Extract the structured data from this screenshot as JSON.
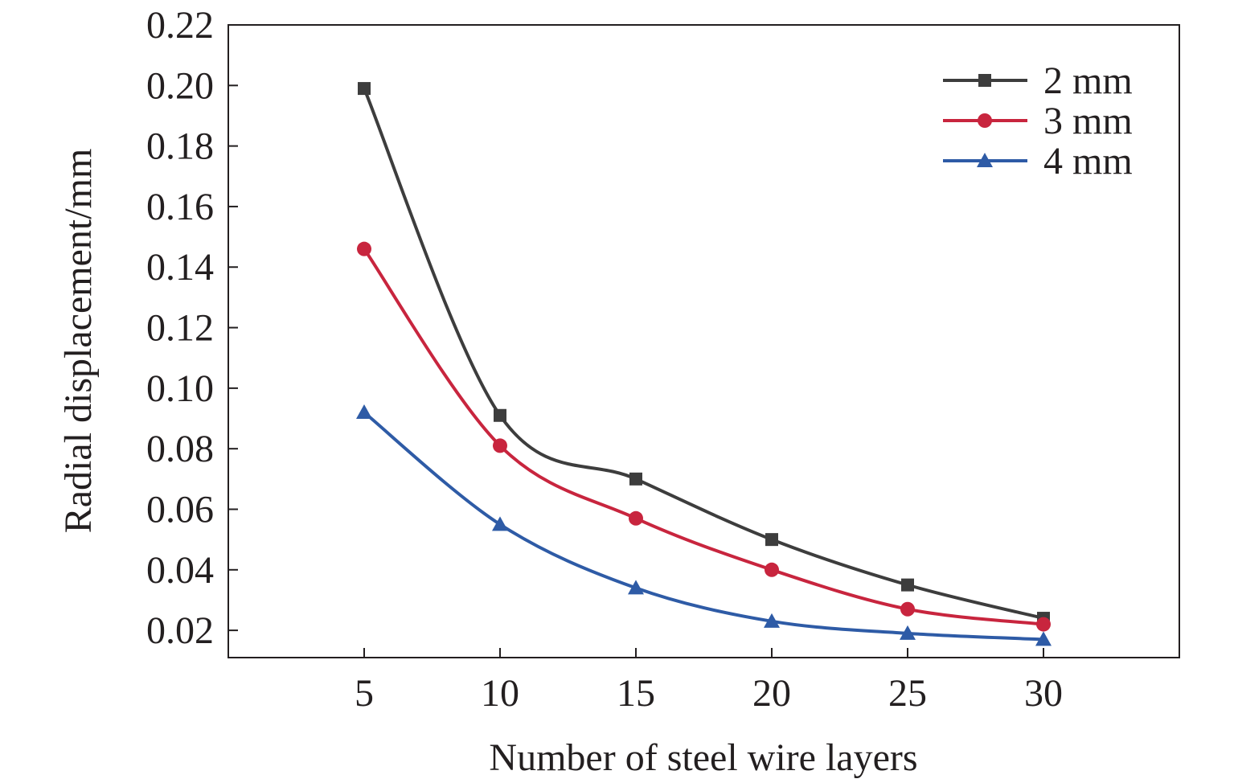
{
  "chart_data": {
    "type": "line",
    "title": "",
    "xlabel": "Number of steel wire layers",
    "ylabel": "Radial displacement/mm",
    "x": [
      5,
      10,
      15,
      20,
      25,
      30
    ],
    "xlim": [
      0,
      35
    ],
    "ylim": [
      0.011,
      0.22
    ],
    "xticks": [
      5,
      10,
      15,
      20,
      25,
      30
    ],
    "xtick_labels": [
      "5",
      "10",
      "15",
      "20",
      "25",
      "30"
    ],
    "yticks": [
      0.02,
      0.04,
      0.06,
      0.08,
      0.1,
      0.12,
      0.14,
      0.16,
      0.18,
      0.2,
      0.22
    ],
    "ytick_labels": [
      "0.02",
      "0.04",
      "0.06",
      "0.08",
      "0.10",
      "0.12",
      "0.14",
      "0.16",
      "0.18",
      "0.20",
      "0.22"
    ],
    "grid": false,
    "legend_position": "top-right",
    "series": [
      {
        "name": "2 mm",
        "label": "2 mm",
        "color": "#3d3d3d",
        "marker": "square",
        "values": [
          0.199,
          0.091,
          0.07,
          0.05,
          0.035,
          0.024
        ]
      },
      {
        "name": "3 mm",
        "label": "3 mm",
        "color": "#c8253e",
        "marker": "circle",
        "values": [
          0.146,
          0.081,
          0.057,
          0.04,
          0.027,
          0.022
        ]
      },
      {
        "name": "4 mm",
        "label": "4 mm",
        "color": "#2e5ba6",
        "marker": "triangle",
        "values": [
          0.092,
          0.055,
          0.034,
          0.023,
          0.019,
          0.017
        ]
      }
    ]
  }
}
